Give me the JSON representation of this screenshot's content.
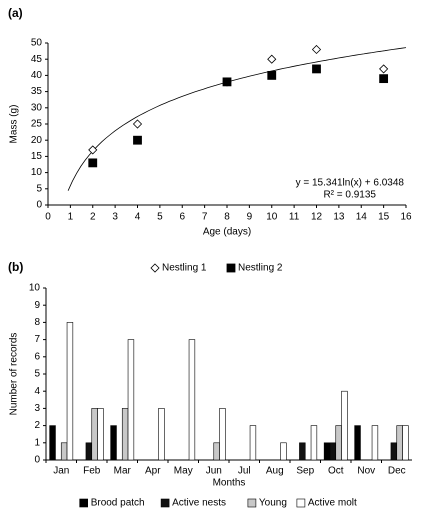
{
  "chart_data": [
    {
      "type": "scatter",
      "title": "(a)",
      "x_label": "Age (days)",
      "y_label": "Mass (g)",
      "x": [
        2,
        4,
        8,
        10,
        12,
        15
      ],
      "series": [
        {
          "name": "Nestling 1",
          "marker": "diamond",
          "color": "#ffffff",
          "values": [
            17,
            25,
            38,
            45,
            48,
            42
          ]
        },
        {
          "name": "Nestling 2",
          "marker": "square",
          "color": "#000000",
          "values": [
            13,
            20,
            38,
            40,
            42,
            39
          ]
        }
      ],
      "trendline": {
        "type": "log",
        "coef": 15.341,
        "intercept": 6.0348,
        "label": "y = 15.341ln(x) + 6.0348",
        "r2_label": "R² = 0.9135"
      },
      "xlim": [
        0,
        16
      ],
      "xticks": [
        0,
        1,
        2,
        3,
        4,
        5,
        6,
        7,
        8,
        9,
        10,
        11,
        12,
        13,
        14,
        15,
        16
      ],
      "ylim": [
        0,
        50
      ],
      "yticks": [
        0,
        5,
        10,
        15,
        20,
        25,
        30,
        35,
        40,
        45,
        50
      ],
      "grid": false,
      "legend": "bottom"
    },
    {
      "type": "bar",
      "title": "(b)",
      "x_label": "Months",
      "y_label": "Number of records",
      "categories": [
        "Jan",
        "Feb",
        "Mar",
        "Apr",
        "May",
        "Jun",
        "Jul",
        "Aug",
        "Sep",
        "Oct",
        "Nov",
        "Dec"
      ],
      "series": [
        {
          "name": "Brood patch",
          "color": "#000000",
          "values": [
            2,
            0,
            2,
            0,
            0,
            0,
            0,
            0,
            0,
            1,
            2,
            0
          ]
        },
        {
          "name": "Active nests",
          "color": "#111111",
          "values": [
            0,
            1,
            0,
            0,
            0,
            0,
            0,
            0,
            1,
            1,
            0,
            1
          ]
        },
        {
          "name": "Young",
          "color": "#c8c8c8",
          "values": [
            1,
            3,
            3,
            0,
            0,
            1,
            0,
            0,
            0,
            2,
            0,
            2
          ]
        },
        {
          "name": "Active molt",
          "color": "#ffffff",
          "values": [
            8,
            3,
            7,
            3,
            7,
            3,
            2,
            1,
            2,
            4,
            2,
            2
          ]
        }
      ],
      "ylim": [
        0,
        10
      ],
      "yticks": [
        0,
        1,
        2,
        3,
        4,
        5,
        6,
        7,
        8,
        9,
        10
      ],
      "grid": false,
      "legend": "bottom"
    }
  ]
}
